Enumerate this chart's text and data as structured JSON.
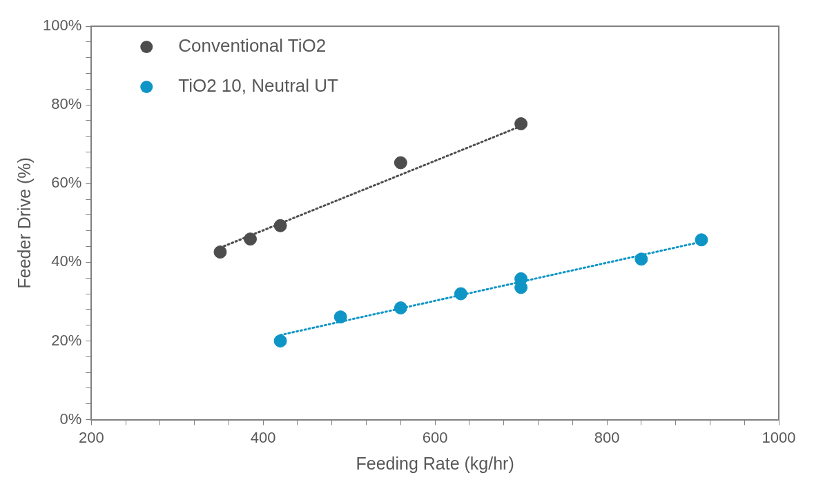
{
  "chart_data": {
    "type": "scatter",
    "xlabel": "Feeding Rate (kg/hr)",
    "ylabel": "Feeder Drive (%)",
    "xlim": [
      200,
      1000
    ],
    "xticks": [
      200,
      {
        "value": 240,
        "label": null
      },
      {
        "value": 280,
        "label": null
      },
      {
        "value": 320,
        "label": null
      },
      {
        "value": 360,
        "label": null
      },
      400,
      {
        "value": 440,
        "label": null
      },
      {
        "value": 480,
        "label": null
      },
      {
        "value": 520,
        "label": null
      },
      {
        "value": 560,
        "label": null
      },
      600,
      {
        "value": 640,
        "label": null
      },
      {
        "value": 680,
        "label": null
      },
      {
        "value": 720,
        "label": null
      },
      {
        "value": 760,
        "label": null
      },
      800,
      {
        "value": 840,
        "label": null
      },
      {
        "value": 880,
        "label": null
      },
      {
        "value": 920,
        "label": null
      },
      {
        "value": 960,
        "label": null
      },
      1000
    ],
    "ylim": [
      0,
      100
    ],
    "yticks": [
      {
        "value": 0,
        "label": "0%"
      },
      {
        "value": 4,
        "label": null
      },
      {
        "value": 8,
        "label": null
      },
      {
        "value": 12,
        "label": null
      },
      {
        "value": 16,
        "label": null
      },
      {
        "value": 20,
        "label": "20%"
      },
      {
        "value": 24,
        "label": null
      },
      {
        "value": 28,
        "label": null
      },
      {
        "value": 32,
        "label": null
      },
      {
        "value": 36,
        "label": null
      },
      {
        "value": 40,
        "label": "40%"
      },
      {
        "value": 44,
        "label": null
      },
      {
        "value": 48,
        "label": null
      },
      {
        "value": 52,
        "label": null
      },
      {
        "value": 56,
        "label": null
      },
      {
        "value": 60,
        "label": "60%"
      },
      {
        "value": 64,
        "label": null
      },
      {
        "value": 68,
        "label": null
      },
      {
        "value": 72,
        "label": null
      },
      {
        "value": 76,
        "label": null
      },
      {
        "value": 80,
        "label": "80%"
      },
      {
        "value": 84,
        "label": null
      },
      {
        "value": 88,
        "label": null
      },
      {
        "value": 92,
        "label": null
      },
      {
        "value": 96,
        "label": null
      },
      {
        "value": 100,
        "label": "100%"
      }
    ],
    "grid": false,
    "legend": "top left",
    "marker": "circle",
    "series": [
      {
        "name": "Conventional TiO2",
        "color": "#4d4d4d",
        "x": [
          350,
          385,
          420,
          560,
          700
        ],
        "values": [
          42.6,
          45.9,
          49.3,
          65.3,
          75.2
        ]
      },
      {
        "name": "TiO2 10, Neutral UT",
        "color": "#0e95c6",
        "x": [
          420,
          490,
          560,
          630,
          700,
          700,
          840,
          910
        ],
        "values": [
          20.0,
          26.1,
          28.4,
          32.0,
          35.8,
          33.6,
          40.8,
          45.7
        ]
      },
      {
        "type": "line",
        "color": "#4d4d4d",
        "line_style": "dotted",
        "marker": "none",
        "x": [
          350,
          700
        ],
        "values": [
          43.7,
          74.6
        ]
      },
      {
        "type": "line",
        "color": "#0e95c6",
        "line_style": "dotted",
        "marker": "none",
        "x": [
          420,
          910
        ],
        "values": [
          21.5,
          45.2
        ]
      }
    ]
  }
}
